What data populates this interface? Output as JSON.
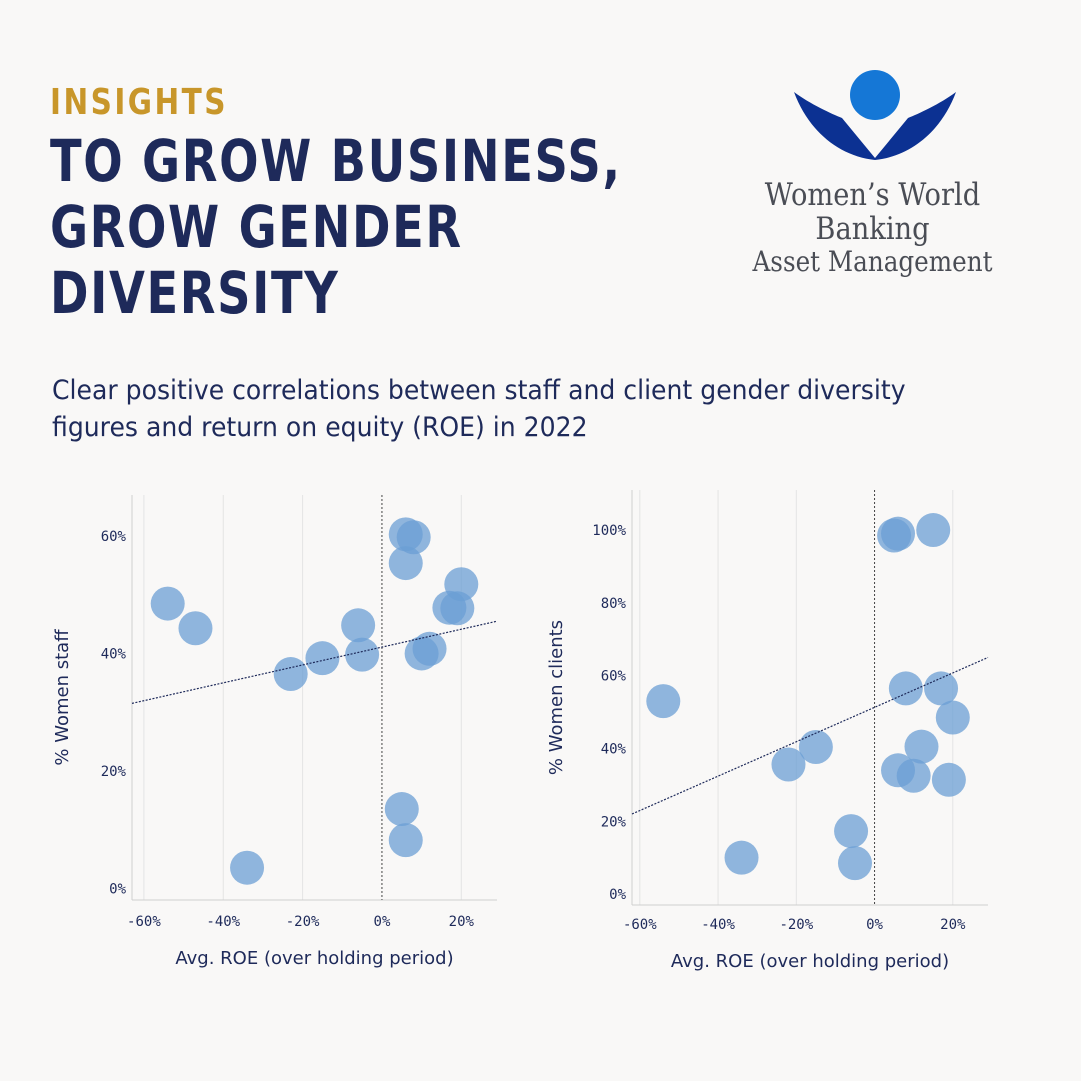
{
  "kicker": "INSIGHTS",
  "headline": [
    "TO GROW BUSINESS,",
    "GROW GENDER",
    "DIVERSITY"
  ],
  "logo": {
    "line1": "Women’s World Banking",
    "line2": "Asset Management",
    "colors": {
      "dark_blue": "#0c3192",
      "light_blue": "#1577d6"
    }
  },
  "subtitle": "Clear positive correlations between staff and client gender diversity figures and return on equity (ROE) in 2022",
  "colors": {
    "point": "#6b9fd4",
    "trend": "#1e2a5a",
    "text": "#1e2a5a",
    "accent": "#c8962a"
  },
  "chart_data": [
    {
      "type": "scatter",
      "xlabel": "Avg. ROE (over holding period)",
      "ylabel": "% Women staff",
      "x_ticks": [
        -60,
        -40,
        -20,
        0,
        20
      ],
      "x_tick_labels": [
        "-60%",
        "-40%",
        "-20%",
        "0%",
        "20%"
      ],
      "y_ticks": [
        0,
        20,
        40,
        60
      ],
      "y_tick_labels": [
        "0%",
        "20%",
        "40%",
        "60%"
      ],
      "xlim": [
        -63,
        29
      ],
      "ylim": [
        -2,
        67
      ],
      "grid": "vertical",
      "reference_line_x": 0,
      "trendline": [
        [
          -63,
          31.5
        ],
        [
          29,
          45.5
        ]
      ],
      "points": [
        {
          "x": -54,
          "y": 48.5
        },
        {
          "x": -47,
          "y": 44.3
        },
        {
          "x": -34,
          "y": 3.5
        },
        {
          "x": -23,
          "y": 36.5
        },
        {
          "x": -15,
          "y": 39.2
        },
        {
          "x": -6,
          "y": 44.8
        },
        {
          "x": -5,
          "y": 39.8
        },
        {
          "x": 5,
          "y": 13.5
        },
        {
          "x": 6,
          "y": 8.2
        },
        {
          "x": 6,
          "y": 55.4
        },
        {
          "x": 6,
          "y": 60.3
        },
        {
          "x": 8,
          "y": 59.8
        },
        {
          "x": 10,
          "y": 40.0
        },
        {
          "x": 12,
          "y": 40.8
        },
        {
          "x": 17,
          "y": 47.8
        },
        {
          "x": 19,
          "y": 47.7
        },
        {
          "x": 20,
          "y": 51.8
        }
      ]
    },
    {
      "type": "scatter",
      "xlabel": "Avg. ROE (over holding period)",
      "ylabel": "% Women clients",
      "x_ticks": [
        -60,
        -40,
        -20,
        0,
        20
      ],
      "x_tick_labels": [
        "-60%",
        "-40%",
        "-20%",
        "0%",
        "20%"
      ],
      "y_ticks": [
        0,
        20,
        40,
        60,
        80,
        100
      ],
      "y_tick_labels": [
        "0%",
        "20%",
        "40%",
        "60%",
        "80%",
        "100%"
      ],
      "xlim": [
        -62,
        29
      ],
      "ylim": [
        -3,
        111
      ],
      "grid": "vertical",
      "reference_line_x": 0,
      "trendline": [
        [
          -62,
          22
        ],
        [
          29,
          65
        ]
      ],
      "points": [
        {
          "x": -54,
          "y": 53
        },
        {
          "x": -34,
          "y": 10
        },
        {
          "x": -22,
          "y": 35.6
        },
        {
          "x": -15,
          "y": 40.4
        },
        {
          "x": -6,
          "y": 17.3
        },
        {
          "x": -5,
          "y": 8.5
        },
        {
          "x": 5,
          "y": 98.5
        },
        {
          "x": 6,
          "y": 99
        },
        {
          "x": 15,
          "y": 100
        },
        {
          "x": 6,
          "y": 34
        },
        {
          "x": 8,
          "y": 56.5
        },
        {
          "x": 10,
          "y": 32.5
        },
        {
          "x": 12,
          "y": 40.5
        },
        {
          "x": 17,
          "y": 56.5
        },
        {
          "x": 19,
          "y": 31.4
        },
        {
          "x": 20,
          "y": 48.5
        }
      ]
    }
  ]
}
